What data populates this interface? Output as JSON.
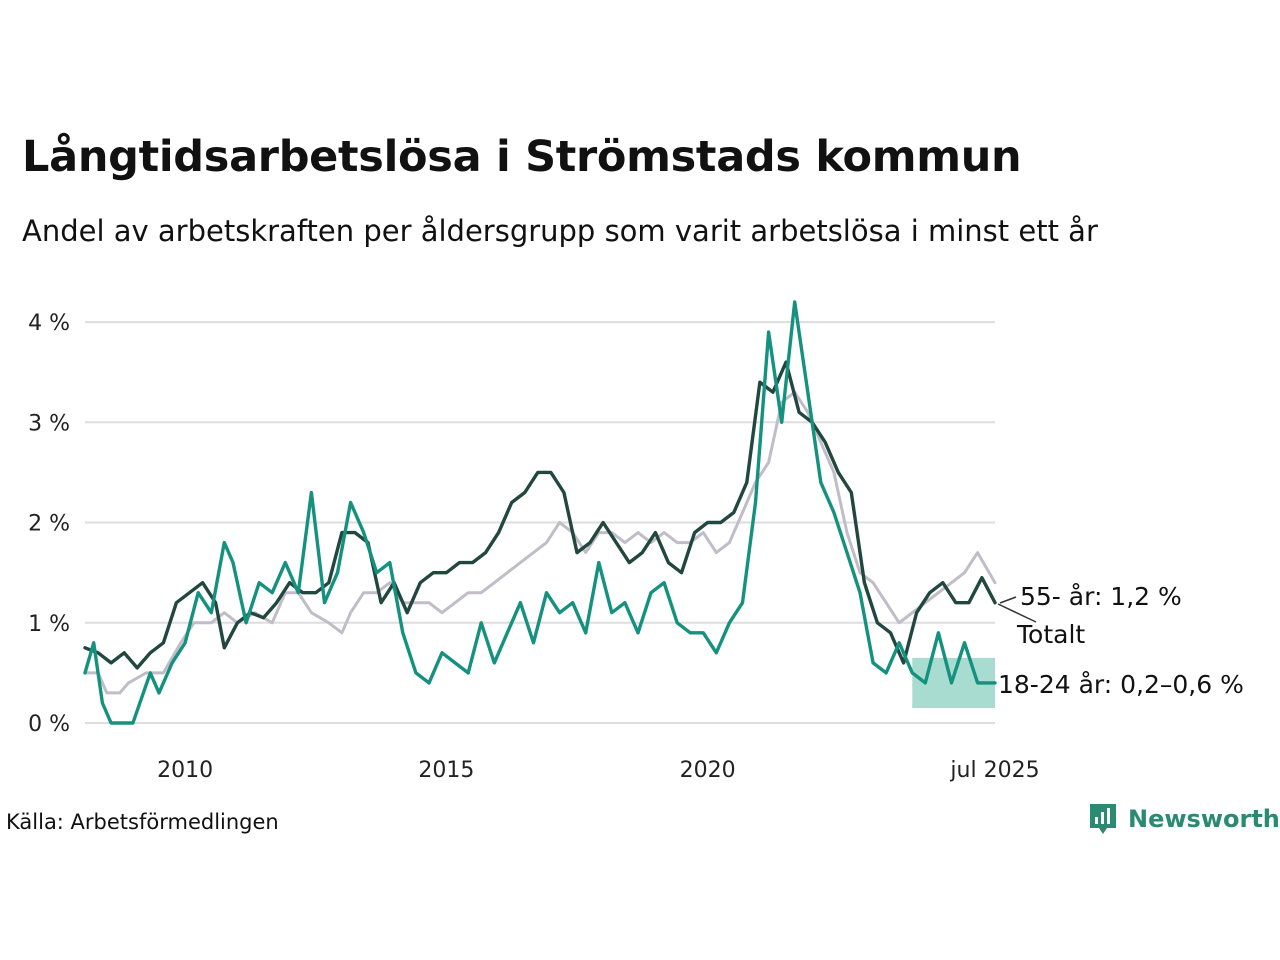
{
  "title": "Långtidsarbetslösa i Strömstads kommun",
  "subtitle": "Andel av arbetskraften per åldersgrupp som varit arbetslösa i minst ett år",
  "source": "Källa: Arbetsförmedlingen",
  "brand": "Newsworthy",
  "colors": {
    "total": "#c1bdc8",
    "age_55": "#21473f",
    "age_18_24": "#15917f",
    "band": "#a0d8cc",
    "grid": "#dddddd",
    "brand": "#2b8a72"
  },
  "chart_data": {
    "type": "line",
    "x_type": "date",
    "xlim": [
      "2008-02",
      "2025-07"
    ],
    "ylim": [
      0,
      4.3
    ],
    "y_ticks": [
      0,
      1,
      2,
      3,
      4
    ],
    "y_tick_labels": [
      "0 %",
      "1 %",
      "2 %",
      "3 %",
      "4 %"
    ],
    "x_ticks": [
      "2010-01",
      "2015-01",
      "2020-01",
      "2025-07"
    ],
    "x_tick_labels": [
      "2010",
      "2015",
      "2020",
      "jul 2025"
    ],
    "grid": true,
    "series": [
      {
        "name": "Totalt",
        "label": "Totalt",
        "points": [
          [
            "2008-02",
            0.5
          ],
          [
            "2008-05",
            0.5
          ],
          [
            "2008-07",
            0.3
          ],
          [
            "2008-10",
            0.3
          ],
          [
            "2008-12",
            0.4
          ],
          [
            "2009-04",
            0.5
          ],
          [
            "2009-08",
            0.5
          ],
          [
            "2009-12",
            0.8
          ],
          [
            "2010-03",
            1.0
          ],
          [
            "2010-07",
            1.0
          ],
          [
            "2010-10",
            1.1
          ],
          [
            "2011-01",
            1.0
          ],
          [
            "2011-05",
            1.1
          ],
          [
            "2011-09",
            1.0
          ],
          [
            "2011-12",
            1.3
          ],
          [
            "2012-03",
            1.3
          ],
          [
            "2012-06",
            1.1
          ],
          [
            "2012-10",
            1.0
          ],
          [
            "2013-01",
            0.9
          ],
          [
            "2013-03",
            1.1
          ],
          [
            "2013-06",
            1.3
          ],
          [
            "2013-09",
            1.3
          ],
          [
            "2013-12",
            1.4
          ],
          [
            "2014-03",
            1.2
          ],
          [
            "2014-06",
            1.2
          ],
          [
            "2014-09",
            1.2
          ],
          [
            "2014-12",
            1.1
          ],
          [
            "2015-03",
            1.2
          ],
          [
            "2015-06",
            1.3
          ],
          [
            "2015-09",
            1.3
          ],
          [
            "2015-12",
            1.4
          ],
          [
            "2016-03",
            1.5
          ],
          [
            "2016-06",
            1.6
          ],
          [
            "2016-09",
            1.7
          ],
          [
            "2016-12",
            1.8
          ],
          [
            "2017-03",
            2.0
          ],
          [
            "2017-06",
            1.9
          ],
          [
            "2017-09",
            1.7
          ],
          [
            "2017-12",
            1.9
          ],
          [
            "2018-03",
            1.9
          ],
          [
            "2018-06",
            1.8
          ],
          [
            "2018-09",
            1.9
          ],
          [
            "2018-12",
            1.8
          ],
          [
            "2019-03",
            1.9
          ],
          [
            "2019-06",
            1.8
          ],
          [
            "2019-09",
            1.8
          ],
          [
            "2019-12",
            1.9
          ],
          [
            "2020-03",
            1.7
          ],
          [
            "2020-06",
            1.8
          ],
          [
            "2020-09",
            2.1
          ],
          [
            "2020-12",
            2.4
          ],
          [
            "2021-03",
            2.6
          ],
          [
            "2021-06",
            3.2
          ],
          [
            "2021-09",
            3.3
          ],
          [
            "2021-12",
            3.1
          ],
          [
            "2022-03",
            2.8
          ],
          [
            "2022-06",
            2.5
          ],
          [
            "2022-09",
            1.9
          ],
          [
            "2022-12",
            1.5
          ],
          [
            "2023-03",
            1.4
          ],
          [
            "2023-06",
            1.2
          ],
          [
            "2023-09",
            1.0
          ],
          [
            "2023-12",
            1.1
          ],
          [
            "2024-03",
            1.2
          ],
          [
            "2024-06",
            1.3
          ],
          [
            "2024-09",
            1.4
          ],
          [
            "2024-12",
            1.5
          ],
          [
            "2025-03",
            1.7
          ],
          [
            "2025-07",
            1.4
          ]
        ]
      },
      {
        "name": "55- år",
        "label": "55- år: 1,2 %",
        "points": [
          [
            "2008-02",
            0.75
          ],
          [
            "2008-05",
            0.7
          ],
          [
            "2008-08",
            0.6
          ],
          [
            "2008-11",
            0.7
          ],
          [
            "2009-02",
            0.55
          ],
          [
            "2009-05",
            0.7
          ],
          [
            "2009-08",
            0.8
          ],
          [
            "2009-11",
            1.2
          ],
          [
            "2010-02",
            1.3
          ],
          [
            "2010-05",
            1.4
          ],
          [
            "2010-08",
            1.2
          ],
          [
            "2010-10",
            0.75
          ],
          [
            "2011-01",
            1.0
          ],
          [
            "2011-04",
            1.1
          ],
          [
            "2011-07",
            1.05
          ],
          [
            "2011-10",
            1.2
          ],
          [
            "2012-01",
            1.4
          ],
          [
            "2012-04",
            1.3
          ],
          [
            "2012-07",
            1.3
          ],
          [
            "2012-10",
            1.4
          ],
          [
            "2013-01",
            1.9
          ],
          [
            "2013-04",
            1.9
          ],
          [
            "2013-07",
            1.8
          ],
          [
            "2013-10",
            1.2
          ],
          [
            "2014-01",
            1.4
          ],
          [
            "2014-04",
            1.1
          ],
          [
            "2014-07",
            1.4
          ],
          [
            "2014-10",
            1.5
          ],
          [
            "2015-01",
            1.5
          ],
          [
            "2015-04",
            1.6
          ],
          [
            "2015-07",
            1.6
          ],
          [
            "2015-10",
            1.7
          ],
          [
            "2016-01",
            1.9
          ],
          [
            "2016-04",
            2.2
          ],
          [
            "2016-07",
            2.3
          ],
          [
            "2016-10",
            2.5
          ],
          [
            "2017-01",
            2.5
          ],
          [
            "2017-04",
            2.3
          ],
          [
            "2017-07",
            1.7
          ],
          [
            "2017-10",
            1.8
          ],
          [
            "2018-01",
            2.0
          ],
          [
            "2018-04",
            1.8
          ],
          [
            "2018-07",
            1.6
          ],
          [
            "2018-10",
            1.7
          ],
          [
            "2019-01",
            1.9
          ],
          [
            "2019-04",
            1.6
          ],
          [
            "2019-07",
            1.5
          ],
          [
            "2019-10",
            1.9
          ],
          [
            "2020-01",
            2.0
          ],
          [
            "2020-04",
            2.0
          ],
          [
            "2020-07",
            2.1
          ],
          [
            "2020-10",
            2.4
          ],
          [
            "2021-01",
            3.4
          ],
          [
            "2021-04",
            3.3
          ],
          [
            "2021-07",
            3.6
          ],
          [
            "2021-10",
            3.1
          ],
          [
            "2022-01",
            3.0
          ],
          [
            "2022-04",
            2.8
          ],
          [
            "2022-07",
            2.5
          ],
          [
            "2022-10",
            2.3
          ],
          [
            "2023-01",
            1.4
          ],
          [
            "2023-04",
            1.0
          ],
          [
            "2023-07",
            0.9
          ],
          [
            "2023-10",
            0.6
          ],
          [
            "2024-01",
            1.1
          ],
          [
            "2024-04",
            1.3
          ],
          [
            "2024-07",
            1.4
          ],
          [
            "2024-10",
            1.2
          ],
          [
            "2025-01",
            1.2
          ],
          [
            "2025-04",
            1.45
          ],
          [
            "2025-07",
            1.2
          ]
        ]
      },
      {
        "name": "18-24 år",
        "label": "18-24 år: 0,2–0,6 %",
        "band": [
          [
            "2023-12",
            0.15,
            0.65
          ],
          [
            "2025-07",
            0.15,
            0.65
          ]
        ],
        "points": [
          [
            "2008-02",
            0.5
          ],
          [
            "2008-04",
            0.8
          ],
          [
            "2008-06",
            0.2
          ],
          [
            "2008-08",
            0.0
          ],
          [
            "2009-01",
            0.0
          ],
          [
            "2009-05",
            0.5
          ],
          [
            "2009-07",
            0.3
          ],
          [
            "2009-10",
            0.6
          ],
          [
            "2010-01",
            0.8
          ],
          [
            "2010-04",
            1.3
          ],
          [
            "2010-07",
            1.1
          ],
          [
            "2010-10",
            1.8
          ],
          [
            "2010-12",
            1.6
          ],
          [
            "2011-03",
            1.0
          ],
          [
            "2011-06",
            1.4
          ],
          [
            "2011-09",
            1.3
          ],
          [
            "2011-12",
            1.6
          ],
          [
            "2012-03",
            1.3
          ],
          [
            "2012-06",
            2.3
          ],
          [
            "2012-09",
            1.2
          ],
          [
            "2012-12",
            1.5
          ],
          [
            "2013-03",
            2.2
          ],
          [
            "2013-06",
            1.9
          ],
          [
            "2013-09",
            1.5
          ],
          [
            "2013-12",
            1.6
          ],
          [
            "2014-03",
            0.9
          ],
          [
            "2014-06",
            0.5
          ],
          [
            "2014-09",
            0.4
          ],
          [
            "2014-12",
            0.7
          ],
          [
            "2015-03",
            0.6
          ],
          [
            "2015-06",
            0.5
          ],
          [
            "2015-09",
            1.0
          ],
          [
            "2015-12",
            0.6
          ],
          [
            "2016-03",
            0.9
          ],
          [
            "2016-06",
            1.2
          ],
          [
            "2016-09",
            0.8
          ],
          [
            "2016-12",
            1.3
          ],
          [
            "2017-03",
            1.1
          ],
          [
            "2017-06",
            1.2
          ],
          [
            "2017-09",
            0.9
          ],
          [
            "2017-12",
            1.6
          ],
          [
            "2018-03",
            1.1
          ],
          [
            "2018-06",
            1.2
          ],
          [
            "2018-09",
            0.9
          ],
          [
            "2018-12",
            1.3
          ],
          [
            "2019-03",
            1.4
          ],
          [
            "2019-06",
            1.0
          ],
          [
            "2019-09",
            0.9
          ],
          [
            "2019-12",
            0.9
          ],
          [
            "2020-03",
            0.7
          ],
          [
            "2020-06",
            1.0
          ],
          [
            "2020-09",
            1.2
          ],
          [
            "2020-12",
            2.2
          ],
          [
            "2021-03",
            3.9
          ],
          [
            "2021-06",
            3.0
          ],
          [
            "2021-09",
            4.2
          ],
          [
            "2021-12",
            3.3
          ],
          [
            "2022-03",
            2.4
          ],
          [
            "2022-06",
            2.1
          ],
          [
            "2022-09",
            1.7
          ],
          [
            "2022-12",
            1.3
          ],
          [
            "2023-03",
            0.6
          ],
          [
            "2023-06",
            0.5
          ],
          [
            "2023-09",
            0.8
          ],
          [
            "2023-12",
            0.5
          ],
          [
            "2024-03",
            0.4
          ],
          [
            "2024-06",
            0.9
          ],
          [
            "2024-09",
            0.4
          ],
          [
            "2024-12",
            0.8
          ],
          [
            "2025-03",
            0.4
          ],
          [
            "2025-07",
            0.4
          ]
        ]
      }
    ]
  }
}
